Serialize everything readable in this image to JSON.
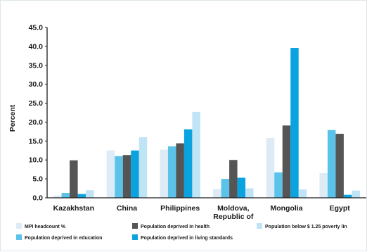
{
  "chart_data": {
    "type": "bar",
    "title": "",
    "xlabel": "",
    "ylabel": "Percent",
    "ylim": [
      0,
      45
    ],
    "yticks": [
      "0.0",
      "5.0",
      "10.0",
      "15.0",
      "20.0",
      "25.0",
      "30.0",
      "35.0",
      "40.0",
      "45.0"
    ],
    "grid": false,
    "legend_position": "bottom",
    "categories": [
      [
        "Kazakhstan"
      ],
      [
        "China"
      ],
      [
        "Philippines"
      ],
      [
        "Moldova,",
        "Republic of"
      ],
      [
        "Mongolia"
      ],
      [
        "Egypt"
      ]
    ],
    "series": [
      {
        "name": "MPI headcount %",
        "color": "#dcebf5",
        "values": [
          0.6,
          12.5,
          12.7,
          2.3,
          15.8,
          6.5
        ]
      },
      {
        "name": "Population deprived in education",
        "color": "#5bc3ea",
        "values": [
          1.3,
          11.0,
          13.6,
          5.0,
          6.7,
          17.9
        ]
      },
      {
        "name": "Population deprived in health",
        "color": "#555555",
        "values": [
          9.9,
          11.3,
          14.4,
          10.0,
          19.1,
          16.9
        ]
      },
      {
        "name": "Population deprived in living standards",
        "color": "#0aa3df",
        "values": [
          1.0,
          12.5,
          18.1,
          5.3,
          39.6,
          0.8
        ]
      },
      {
        "name": "Population below $ 1.25 poverty lin",
        "color": "#bfe4f6",
        "values": [
          2.0,
          16.0,
          22.7,
          2.5,
          2.2,
          1.9
        ]
      }
    ]
  }
}
